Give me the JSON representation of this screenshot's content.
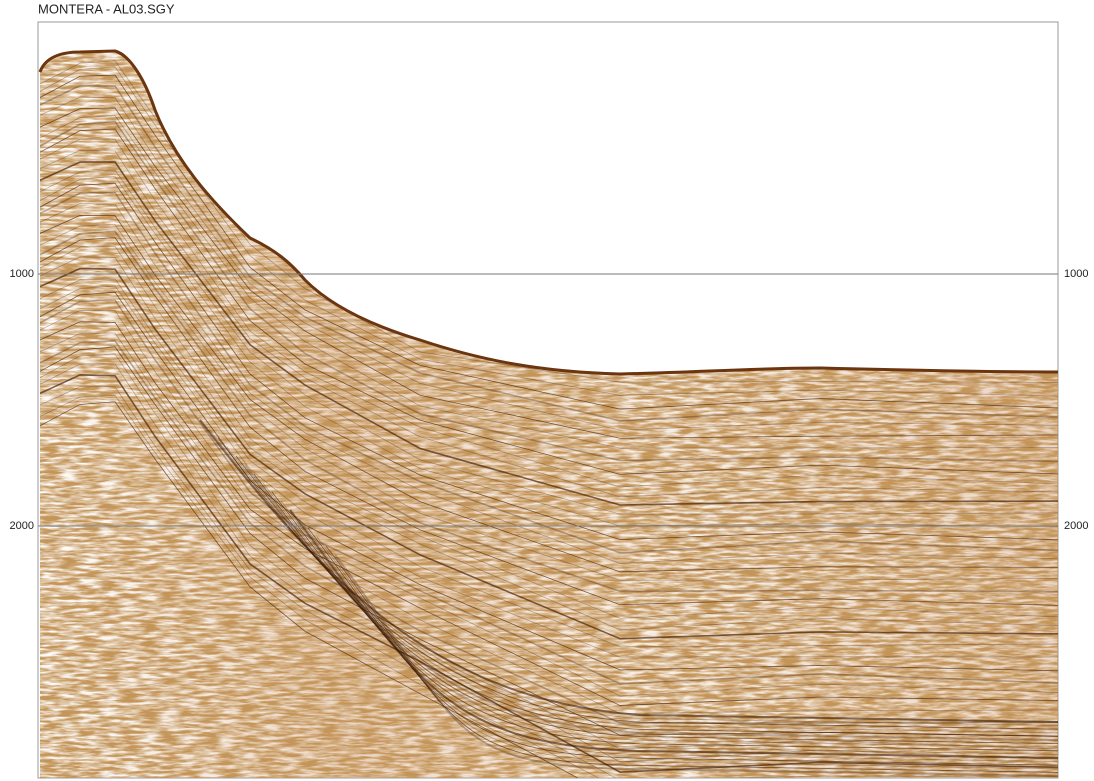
{
  "chart_data": {
    "type": "seismic",
    "title": "MONTERA - AL03.SGY",
    "ylim": [
      0,
      3000
    ],
    "yticks": [
      1000,
      2000
    ],
    "grid": true
  }
}
